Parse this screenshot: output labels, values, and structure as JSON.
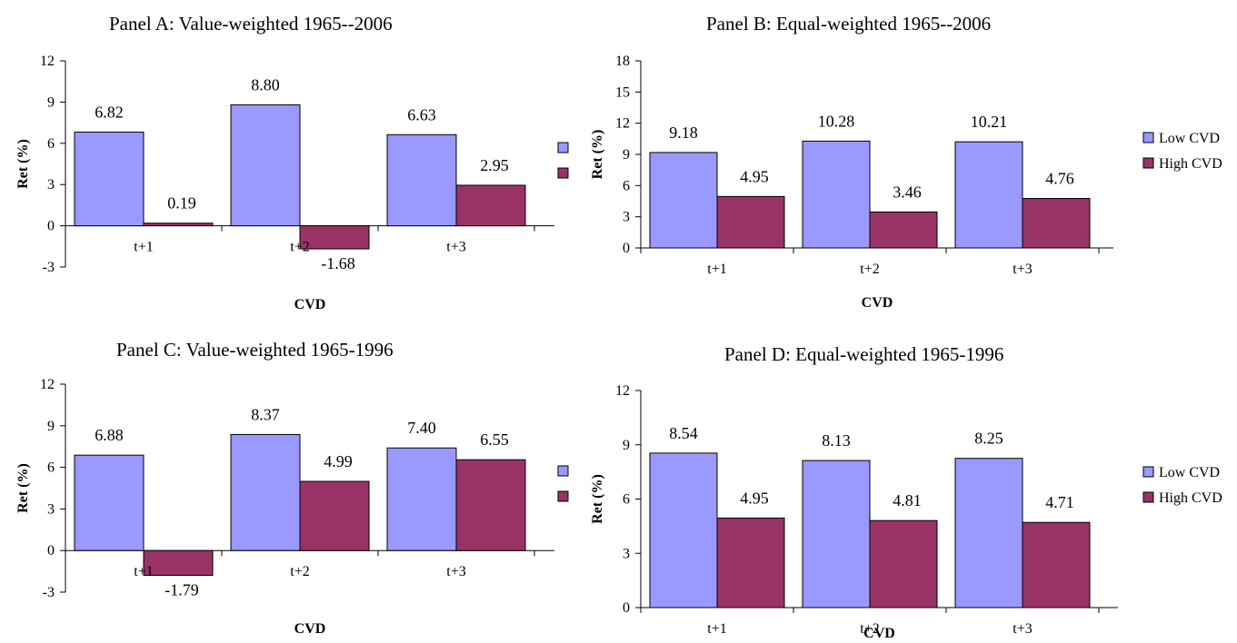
{
  "colors": {
    "low": "#9999ff",
    "high": "#993366",
    "axis": "#000000"
  },
  "chart_data": [
    {
      "type": "bar",
      "title": "Panel A: Value-weighted 1965--2006",
      "xlabel": "CVD",
      "ylabel": "Ret (%)",
      "ylim": [
        -3,
        12
      ],
      "yticks": [
        -3,
        0,
        3,
        6,
        9,
        12
      ],
      "categories": [
        "t+1",
        "t+2",
        "t+3"
      ],
      "legend": "right",
      "legend_labels_shown": false,
      "series": [
        {
          "name": "Low CVD",
          "values": [
            6.82,
            8.8,
            6.63
          ],
          "labels": [
            "6.82",
            "8.80",
            "6.63"
          ]
        },
        {
          "name": "High CVD",
          "values": [
            0.19,
            -1.68,
            2.95
          ],
          "labels": [
            "0.19",
            "-1.68",
            "2.95"
          ]
        }
      ]
    },
    {
      "type": "bar",
      "title": "Panel B: Equal-weighted 1965--2006",
      "xlabel": "CVD",
      "ylabel": "Ret (%)",
      "ylim": [
        0,
        18
      ],
      "yticks": [
        0,
        3,
        6,
        9,
        12,
        15,
        18
      ],
      "categories": [
        "t+1",
        "t+2",
        "t+3"
      ],
      "legend": "right",
      "legend_labels_shown": true,
      "series": [
        {
          "name": "Low CVD",
          "values": [
            9.18,
            10.28,
            10.21
          ],
          "labels": [
            "9.18",
            "10.28",
            "10.21"
          ]
        },
        {
          "name": "High CVD",
          "values": [
            4.95,
            3.46,
            4.76
          ],
          "labels": [
            "4.95",
            "3.46",
            "4.76"
          ]
        }
      ]
    },
    {
      "type": "bar",
      "title": "Panel C: Value-weighted 1965-1996",
      "xlabel": "CVD",
      "ylabel": "Ret (%)",
      "ylim": [
        -3,
        12
      ],
      "yticks": [
        -3,
        0,
        3,
        6,
        9,
        12
      ],
      "categories": [
        "t+1",
        "t+2",
        "t+3"
      ],
      "legend": "right",
      "legend_labels_shown": false,
      "series": [
        {
          "name": "Low CVD",
          "values": [
            6.88,
            8.37,
            7.4
          ],
          "labels": [
            "6.88",
            "8.37",
            "7.40"
          ]
        },
        {
          "name": "High CVD",
          "values": [
            -1.79,
            4.99,
            6.55
          ],
          "labels": [
            "-1.79",
            "4.99",
            "6.55"
          ]
        }
      ]
    },
    {
      "type": "bar",
      "title": "Panel D: Equal-weighted 1965-1996",
      "xlabel": "CVD",
      "ylabel": "Ret (%)",
      "ylim": [
        0,
        12
      ],
      "yticks": [
        0,
        3,
        6,
        9,
        12
      ],
      "categories": [
        "t+1",
        "t+2",
        "t+3"
      ],
      "legend": "right",
      "legend_labels_shown": true,
      "series": [
        {
          "name": "Low CVD",
          "values": [
            8.54,
            8.13,
            8.25
          ],
          "labels": [
            "8.54",
            "8.13",
            "8.25"
          ]
        },
        {
          "name": "High CVD",
          "values": [
            4.95,
            4.81,
            4.71
          ],
          "labels": [
            "4.95",
            "4.81",
            "4.71"
          ]
        }
      ]
    }
  ]
}
